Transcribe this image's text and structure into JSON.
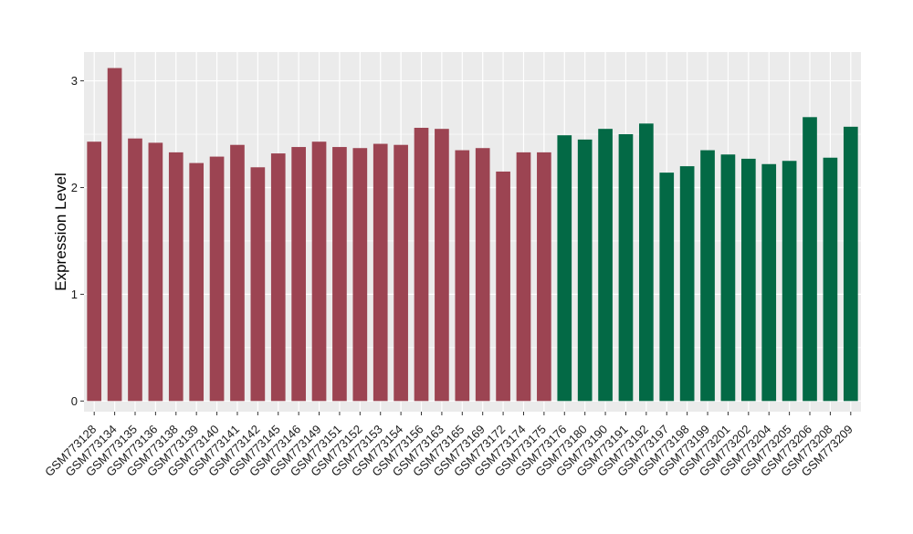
{
  "chart_data": {
    "type": "bar",
    "title": "",
    "xlabel": "",
    "ylabel": "Expression Level",
    "ylim": [
      -0.1,
      3.27
    ],
    "yticks": [
      0,
      1,
      2,
      3
    ],
    "grid": true,
    "legend": "none",
    "categories": [
      "GSM773128",
      "GSM773134",
      "GSM773135",
      "GSM773136",
      "GSM773138",
      "GSM773139",
      "GSM773140",
      "GSM773141",
      "GSM773142",
      "GSM773145",
      "GSM773146",
      "GSM773149",
      "GSM773151",
      "GSM773152",
      "GSM773153",
      "GSM773154",
      "GSM773156",
      "GSM773163",
      "GSM773165",
      "GSM773169",
      "GSM773172",
      "GSM773174",
      "GSM773175",
      "GSM773176",
      "GSM773180",
      "GSM773190",
      "GSM773191",
      "GSM773192",
      "GSM773197",
      "GSM773198",
      "GSM773199",
      "GSM773201",
      "GSM773202",
      "GSM773204",
      "GSM773205",
      "GSM773206",
      "GSM773208",
      "GSM773209"
    ],
    "values": [
      2.43,
      3.12,
      2.46,
      2.42,
      2.33,
      2.23,
      2.29,
      2.4,
      2.19,
      2.32,
      2.38,
      2.43,
      2.38,
      2.37,
      2.41,
      2.4,
      2.56,
      2.55,
      2.35,
      2.37,
      2.15,
      2.33,
      2.33,
      2.49,
      2.45,
      2.55,
      2.5,
      2.6,
      2.14,
      2.2,
      2.35,
      2.31,
      2.27,
      2.22,
      2.25,
      2.66,
      2.28,
      2.57
    ],
    "bar_colors": [
      "#9c4452",
      "#9c4452",
      "#9c4452",
      "#9c4452",
      "#9c4452",
      "#9c4452",
      "#9c4452",
      "#9c4452",
      "#9c4452",
      "#9c4452",
      "#9c4452",
      "#9c4452",
      "#9c4452",
      "#9c4452",
      "#9c4452",
      "#9c4452",
      "#9c4452",
      "#9c4452",
      "#9c4452",
      "#9c4452",
      "#9c4452",
      "#9c4452",
      "#9c4452",
      "#036945",
      "#036945",
      "#036945",
      "#036945",
      "#036945",
      "#036945",
      "#036945",
      "#036945",
      "#036945",
      "#036945",
      "#036945",
      "#036945",
      "#036945",
      "#036945",
      "#036945"
    ],
    "panel_background": "#ebebeb",
    "grid_color": "#ffffff"
  }
}
